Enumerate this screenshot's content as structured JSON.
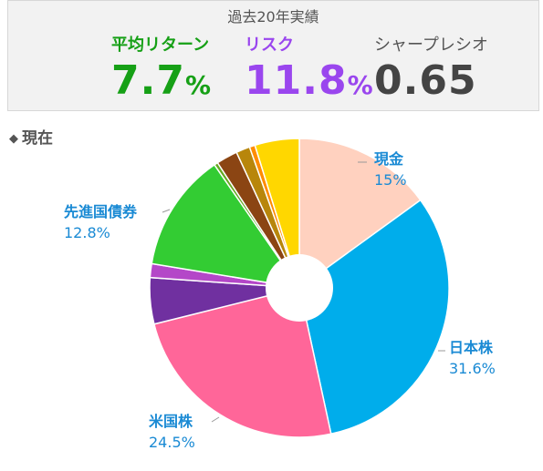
{
  "summary": {
    "title": "過去20年実績",
    "return": {
      "label": "平均リターン",
      "value": "7.7",
      "unit": "%"
    },
    "risk": {
      "label": "リスク",
      "value": "11.8",
      "unit": "%"
    },
    "sharpe": {
      "label": "シャープレシオ",
      "value": "0.65"
    }
  },
  "section": {
    "marker": "◆",
    "title": "現在"
  },
  "chart_data": {
    "type": "pie",
    "donut": true,
    "start_angle_deg": 0,
    "direction": "clockwise",
    "slices": [
      {
        "name": "現金",
        "value": 15,
        "label_text": "15%",
        "color": "#ffd1bf",
        "labeled": true
      },
      {
        "name": "日本株",
        "value": 31.6,
        "label_text": "31.6%",
        "color": "#00adeb",
        "labeled": true
      },
      {
        "name": "米国株",
        "value": 24.5,
        "label_text": "24.5%",
        "color": "#ff6699",
        "labeled": true
      },
      {
        "name": "",
        "value": 5.0,
        "color": "#7030a0",
        "labeled": false
      },
      {
        "name": "",
        "value": 1.5,
        "color": "#b447c8",
        "labeled": false
      },
      {
        "name": "先進国債券",
        "value": 12.8,
        "label_text": "12.8%",
        "color": "#33cc33",
        "labeled": true
      },
      {
        "name": "",
        "value": 0.4,
        "color": "#66aa22",
        "labeled": false
      },
      {
        "name": "",
        "value": 2.3,
        "color": "#8b4513",
        "labeled": false
      },
      {
        "name": "",
        "value": 1.5,
        "color": "#b8860b",
        "labeled": false
      },
      {
        "name": "",
        "value": 0.6,
        "color": "#ff8c00",
        "labeled": false
      },
      {
        "name": "",
        "value": 4.8,
        "color": "#ffd700",
        "labeled": false
      }
    ]
  }
}
